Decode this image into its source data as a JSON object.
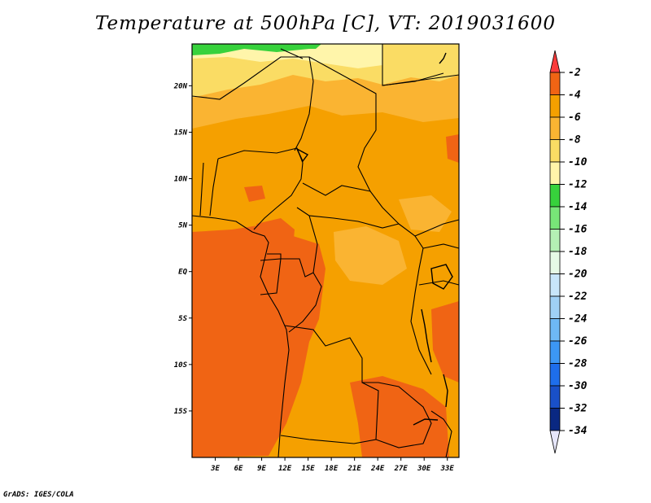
{
  "chart_data": {
    "type": "heatmap",
    "title": "Temperature at 500hPa [C], VT: 2019031600",
    "variable": "Temperature at 500hPa",
    "units": "C",
    "valid_time": "2019031600",
    "region": "Central Africa",
    "xlim": [
      0,
      34.5
    ],
    "ylim": [
      -20,
      24.5
    ],
    "x_ticks": [
      {
        "value": 3,
        "label": "3E"
      },
      {
        "value": 6,
        "label": "6E"
      },
      {
        "value": 9,
        "label": "9E"
      },
      {
        "value": 12,
        "label": "12E"
      },
      {
        "value": 15,
        "label": "15E"
      },
      {
        "value": 18,
        "label": "18E"
      },
      {
        "value": 21,
        "label": "21E"
      },
      {
        "value": 24,
        "label": "24E"
      },
      {
        "value": 27,
        "label": "27E"
      },
      {
        "value": 30,
        "label": "30E"
      },
      {
        "value": 33,
        "label": "33E"
      }
    ],
    "y_ticks": [
      {
        "value": 20,
        "label": "20N"
      },
      {
        "value": 15,
        "label": "15N"
      },
      {
        "value": 10,
        "label": "10N"
      },
      {
        "value": 5,
        "label": "5N"
      },
      {
        "value": 0,
        "label": "EQ"
      },
      {
        "value": -5,
        "label": "5S"
      },
      {
        "value": -10,
        "label": "10S"
      },
      {
        "value": -15,
        "label": "15S"
      }
    ],
    "colorbar": {
      "levels": [
        "-2",
        "-4",
        "-6",
        "-8",
        "-10",
        "-12",
        "-14",
        "-16",
        "-18",
        "-20",
        "-22",
        "-24",
        "-26",
        "-28",
        "-30",
        "-32",
        "-34"
      ],
      "colors": [
        "#fa3c3c",
        "#f06414",
        "#f5a000",
        "#fab432",
        "#fadc64",
        "#fff5aa",
        "#37d23c",
        "#78e678",
        "#b4f0b4",
        "#e6fae6",
        "#c8e6fa",
        "#9fd0f5",
        "#6eb9f5",
        "#3c97f5",
        "#1e6eeb",
        "#1950c8",
        "#0a2882",
        "#e6e6fa"
      ]
    },
    "regions": [
      {
        "level": "-6",
        "label": "dominant field, about -5 C across most of the domain"
      },
      {
        "level": "-8",
        "label": "northern band near 15N-22N"
      },
      {
        "level": "-10",
        "label": "northern band near 20N-23N"
      },
      {
        "level": "-12",
        "label": "small patch at the northern edge"
      },
      {
        "level": "-4",
        "label": "warmer pockets near the equator and in the southeast"
      }
    ]
  },
  "credit": "GrADS: IGES/COLA"
}
